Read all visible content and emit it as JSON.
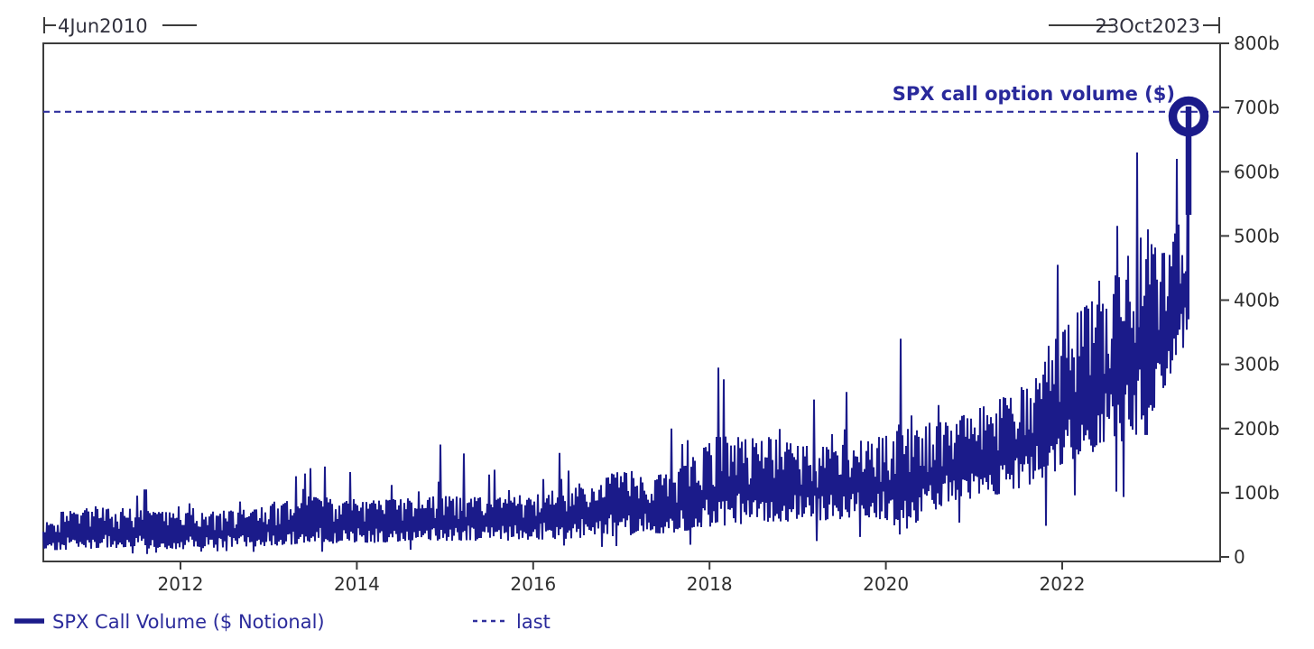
{
  "chart_data": {
    "type": "line",
    "title_annotation": "SPX call option volume ($)",
    "series_name": "SPX Call Volume ($ Notional)",
    "unit": "billions of USD notional per day",
    "x_start_label": "4Jun2010",
    "x_end_label": "23Oct2023",
    "x_ticks": [
      2012,
      2014,
      2016,
      2018,
      2020,
      2022
    ],
    "y_ticks": [
      "0",
      "100b",
      "200b",
      "300b",
      "400b",
      "500b",
      "600b",
      "700b",
      "800b"
    ],
    "y_tick_values": [
      0,
      100,
      200,
      300,
      400,
      500,
      600,
      700,
      800
    ],
    "ylim": [
      0,
      800
    ],
    "x_range_years": [
      2010.44,
      2023.81
    ],
    "last_value_b": 692,
    "grid": false,
    "legend_position": "bottom-left",
    "legend": [
      {
        "label": "SPX Call Volume ($ Notional)",
        "style": "solid"
      },
      {
        "label": "last",
        "style": "dashed"
      }
    ],
    "colors": {
      "series": "#1b1b8a",
      "dashed_last_line": "#30309e",
      "axis": "#3c3c3c",
      "tick_text": "#2f2f2f",
      "annotation_text": "#29299b"
    },
    "envelope_daily_range_b": [
      {
        "year": 2010.45,
        "low": 10,
        "high": 68,
        "spike": 85
      },
      {
        "year": 2011.2,
        "low": 14,
        "high": 78,
        "spike": 105
      },
      {
        "year": 2012.0,
        "low": 12,
        "high": 68,
        "spike": 88
      },
      {
        "year": 2012.8,
        "low": 16,
        "high": 75,
        "spike": 100
      },
      {
        "year": 2013.4,
        "low": 20,
        "high": 95,
        "spike": 150
      },
      {
        "year": 2014.2,
        "low": 22,
        "high": 88,
        "spike": 135
      },
      {
        "year": 2014.95,
        "low": 25,
        "high": 95,
        "spike": 175
      },
      {
        "year": 2015.6,
        "low": 25,
        "high": 92,
        "spike": 145
      },
      {
        "year": 2016.3,
        "low": 28,
        "high": 105,
        "spike": 165
      },
      {
        "year": 2017.0,
        "low": 33,
        "high": 135,
        "spike": 230
      },
      {
        "year": 2017.6,
        "low": 38,
        "high": 130,
        "spike": 200
      },
      {
        "year": 2018.1,
        "low": 48,
        "high": 190,
        "spike": 295
      },
      {
        "year": 2018.7,
        "low": 55,
        "high": 185,
        "spike": 270
      },
      {
        "year": 2019.2,
        "low": 55,
        "high": 170,
        "spike": 250
      },
      {
        "year": 2019.9,
        "low": 60,
        "high": 185,
        "spike": 290
      },
      {
        "year": 2020.2,
        "low": 40,
        "high": 210,
        "spike": 340
      },
      {
        "year": 2020.7,
        "low": 85,
        "high": 210,
        "spike": 300
      },
      {
        "year": 2021.2,
        "low": 95,
        "high": 240,
        "spike": 310
      },
      {
        "year": 2021.7,
        "low": 115,
        "high": 280,
        "spike": 380
      },
      {
        "year": 2022.0,
        "low": 140,
        "high": 360,
        "spike": 460
      },
      {
        "year": 2022.5,
        "low": 170,
        "high": 420,
        "spike": 520
      },
      {
        "year": 2022.9,
        "low": 190,
        "high": 500,
        "spike": 630
      },
      {
        "year": 2023.2,
        "low": 280,
        "high": 470,
        "spike": 600
      },
      {
        "year": 2023.45,
        "low": 350,
        "high": 580,
        "spike": 660
      }
    ],
    "notable_events_b": [
      {
        "year": 2011.6,
        "value": 105,
        "dir": "up"
      },
      {
        "year": 2014.95,
        "value": 175,
        "dir": "up"
      },
      {
        "year": 2018.1,
        "value": 295,
        "dir": "up"
      },
      {
        "year": 2020.17,
        "value": 340,
        "dir": "up"
      },
      {
        "year": 2020.15,
        "value": 35,
        "dir": "down"
      },
      {
        "year": 2021.95,
        "value": 455,
        "dir": "up"
      },
      {
        "year": 2022.85,
        "value": 630,
        "dir": "up"
      },
      {
        "year": 2022.94,
        "value": 190,
        "dir": "down"
      },
      {
        "year": 2023.3,
        "value": 620,
        "dir": "up"
      },
      {
        "year": 2023.42,
        "value": 650,
        "dir": "up"
      }
    ]
  }
}
